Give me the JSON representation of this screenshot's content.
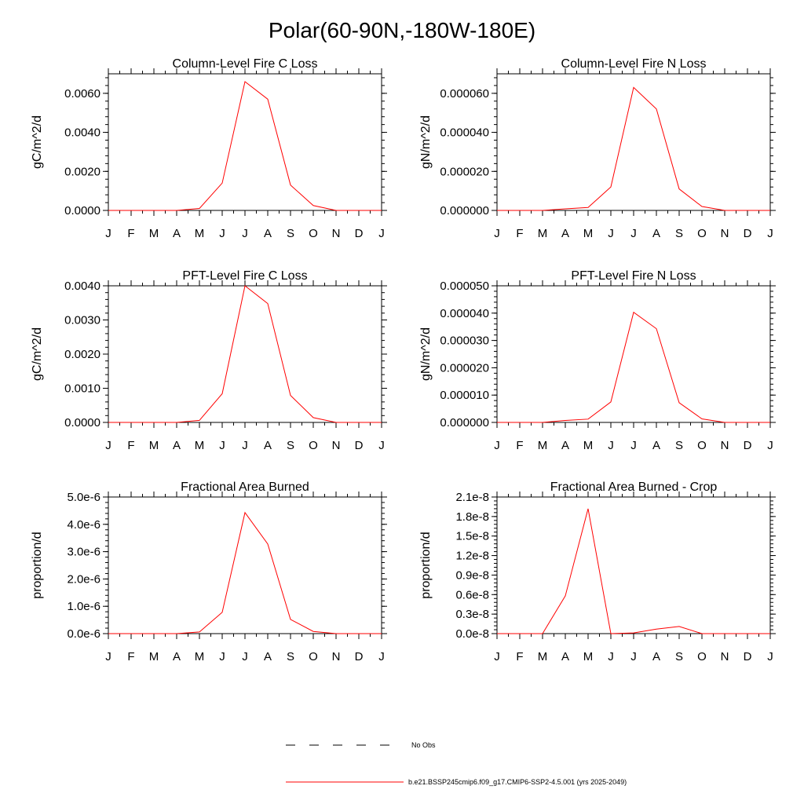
{
  "figure": {
    "title": "Polar(60-90N,-180W-180E)",
    "line_color": "#ff0000",
    "legend": [
      {
        "label": "No Obs",
        "style": "dashed",
        "color": "#000000"
      },
      {
        "label": "b.e21.BSSP245cmip6.f09_g17.CMIP6-SSP2-4.5.001 (yrs 2025-2049)",
        "style": "solid",
        "color": "#ff0000"
      }
    ]
  },
  "chart_data": [
    {
      "type": "line",
      "title": "Column-Level Fire C Loss",
      "ylabel": "gC/m^2/d",
      "categories": [
        "J",
        "F",
        "M",
        "A",
        "M",
        "J",
        "J",
        "A",
        "S",
        "O",
        "N",
        "D",
        "J"
      ],
      "ylim": [
        0,
        0.007
      ],
      "yticks": [
        0,
        0.002,
        0.004,
        0.006
      ],
      "ytick_labels": [
        "0.0000",
        "0.0020",
        "0.0040",
        "0.0060"
      ],
      "series": [
        {
          "values": [
            0,
            0,
            0,
            0,
            0.0001,
            0.0014,
            0.0066,
            0.0057,
            0.0013,
            0.00025,
            0,
            0,
            0
          ]
        }
      ]
    },
    {
      "type": "line",
      "title": "Column-Level Fire N Loss",
      "ylabel": "gN/m^2/d",
      "categories": [
        "J",
        "F",
        "M",
        "A",
        "M",
        "J",
        "J",
        "A",
        "S",
        "O",
        "N",
        "D",
        "J"
      ],
      "ylim": [
        0,
        7e-05
      ],
      "yticks": [
        0,
        2e-05,
        4e-05,
        6e-05
      ],
      "ytick_labels": [
        "0.000000",
        "0.000020",
        "0.000040",
        "0.000060"
      ],
      "series": [
        {
          "values": [
            0,
            0,
            0,
            8e-07,
            1.5e-06,
            1.2e-05,
            6.3e-05,
            5.2e-05,
            1.1e-05,
            2e-06,
            0,
            0,
            0
          ]
        }
      ]
    },
    {
      "type": "line",
      "title": "PFT-Level Fire C Loss",
      "ylabel": "gC/m^2/d",
      "categories": [
        "J",
        "F",
        "M",
        "A",
        "M",
        "J",
        "J",
        "A",
        "S",
        "O",
        "N",
        "D",
        "J"
      ],
      "ylim": [
        0,
        0.004
      ],
      "yticks": [
        0,
        0.001,
        0.002,
        0.003,
        0.004
      ],
      "ytick_labels": [
        "0.0000",
        "0.0010",
        "0.0020",
        "0.0030",
        "0.0040"
      ],
      "series": [
        {
          "values": [
            0,
            0,
            0,
            0,
            6e-05,
            0.00084,
            0.004,
            0.00348,
            0.00079,
            0.00014,
            0,
            0,
            0
          ]
        }
      ]
    },
    {
      "type": "line",
      "title": "PFT-Level Fire N Loss",
      "ylabel": "gN/m^2/d",
      "categories": [
        "J",
        "F",
        "M",
        "A",
        "M",
        "J",
        "J",
        "A",
        "S",
        "O",
        "N",
        "D",
        "J"
      ],
      "ylim": [
        0,
        5e-05
      ],
      "yticks": [
        0,
        1e-05,
        2e-05,
        3e-05,
        4e-05,
        5e-05
      ],
      "ytick_labels": [
        "0.000000",
        "0.000010",
        "0.000020",
        "0.000030",
        "0.000040",
        "0.000050"
      ],
      "series": [
        {
          "values": [
            0,
            0,
            0,
            7e-07,
            1.2e-06,
            7.5e-06,
            4.03e-05,
            3.43e-05,
            7.2e-06,
            1.3e-06,
            0,
            0,
            0
          ]
        }
      ]
    },
    {
      "type": "line",
      "title": "Fractional Area Burned",
      "ylabel": "proportion/d",
      "categories": [
        "J",
        "F",
        "M",
        "A",
        "M",
        "J",
        "J",
        "A",
        "S",
        "O",
        "N",
        "D",
        "J"
      ],
      "ylim": [
        0,
        5e-06
      ],
      "yticks": [
        0,
        1e-06,
        2e-06,
        3e-06,
        4e-06,
        5e-06
      ],
      "ytick_labels": [
        "0.0e-6",
        "1.0e-6",
        "2.0e-6",
        "3.0e-6",
        "4.0e-6",
        "5.0e-6"
      ],
      "series": [
        {
          "values": [
            0,
            0,
            0,
            0,
            6e-08,
            7.8e-07,
            4.43e-06,
            3.28e-06,
            5.2e-07,
            8e-08,
            0,
            0,
            0
          ]
        }
      ]
    },
    {
      "type": "line",
      "title": "Fractional Area Burned - Crop",
      "ylabel": "proportion/d",
      "categories": [
        "J",
        "F",
        "M",
        "A",
        "M",
        "J",
        "J",
        "A",
        "S",
        "O",
        "N",
        "D",
        "J"
      ],
      "ylim": [
        0,
        2.1e-08
      ],
      "yticks": [
        0,
        3e-09,
        6e-09,
        9e-09,
        1.2e-08,
        1.5e-08,
        1.8e-08,
        2.1e-08
      ],
      "ytick_labels": [
        "0.0e-8",
        "0.3e-8",
        "0.6e-8",
        "0.9e-8",
        "1.2e-8",
        "1.5e-8",
        "1.8e-8",
        "2.1e-8"
      ],
      "series": [
        {
          "values": [
            0,
            0,
            0,
            5.8e-09,
            1.92e-08,
            0,
            1e-10,
            7e-10,
            1.1e-09,
            0,
            0,
            0,
            0
          ]
        }
      ]
    }
  ]
}
